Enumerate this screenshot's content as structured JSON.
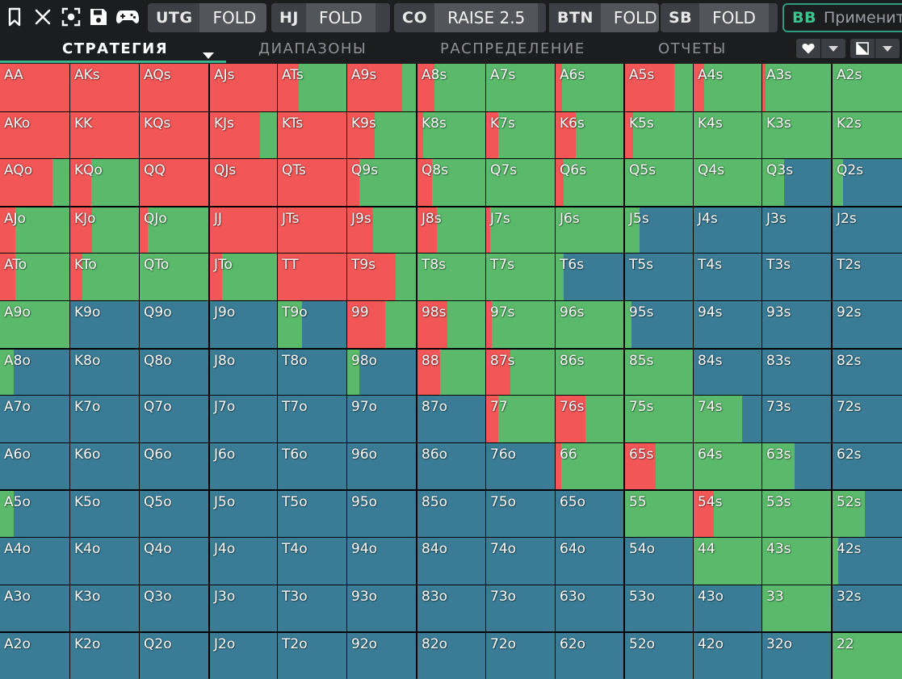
{
  "toolbar": {
    "icons": [
      "bookmark-icon",
      "close-icon",
      "focus-icon",
      "save-icon",
      "gamepad-icon"
    ],
    "positions": [
      {
        "name": "UTG",
        "action": "FOLD"
      },
      {
        "name": "HJ",
        "action": "FOLD"
      },
      {
        "name": "CO",
        "action": "RAISE 2.5"
      },
      {
        "name": "BTN",
        "action": "FOLD"
      },
      {
        "name": "SB",
        "action": "FOLD"
      }
    ],
    "bb": {
      "name": "BB",
      "apply_label": "Применит"
    }
  },
  "tabs": [
    {
      "label": "СТРАТЕГИЯ",
      "active": true
    },
    {
      "label": "ДИАПАЗОНЫ",
      "active": false
    },
    {
      "label": "РАСПРЕДЕЛЕНИЕ",
      "active": false
    },
    {
      "label": "ОТЧЕТЫ",
      "active": false
    }
  ],
  "view_tools": [
    {
      "icon": "heart-icon"
    },
    {
      "icon": "contrast-icon"
    }
  ],
  "colors": {
    "raise": "#f35656",
    "call": "#5ab96a",
    "fold": "#3a7c96"
  },
  "matrix": {
    "hands": [
      [
        "AA",
        "AKs",
        "AQs",
        "AJs",
        "ATs",
        "A9s",
        "A8s",
        "A7s",
        "A6s",
        "A5s",
        "A4s",
        "A3s",
        "A2s"
      ],
      [
        "AKo",
        "KK",
        "KQs",
        "KJs",
        "KTs",
        "K9s",
        "K8s",
        "K7s",
        "K6s",
        "K5s",
        "K4s",
        "K3s",
        "K2s"
      ],
      [
        "AQo",
        "KQo",
        "QQ",
        "QJs",
        "QTs",
        "Q9s",
        "Q8s",
        "Q7s",
        "Q6s",
        "Q5s",
        "Q4s",
        "Q3s",
        "Q2s"
      ],
      [
        "AJo",
        "KJo",
        "QJo",
        "JJ",
        "JTs",
        "J9s",
        "J8s",
        "J7s",
        "J6s",
        "J5s",
        "J4s",
        "J3s",
        "J2s"
      ],
      [
        "ATo",
        "KTo",
        "QTo",
        "JTo",
        "TT",
        "T9s",
        "T8s",
        "T7s",
        "T6s",
        "T5s",
        "T4s",
        "T3s",
        "T2s"
      ],
      [
        "A9o",
        "K9o",
        "Q9o",
        "J9o",
        "T9o",
        "99",
        "98s",
        "97s",
        "96s",
        "95s",
        "94s",
        "93s",
        "92s"
      ],
      [
        "A8o",
        "K8o",
        "Q8o",
        "J8o",
        "T8o",
        "98o",
        "88",
        "87s",
        "86s",
        "85s",
        "84s",
        "83s",
        "82s"
      ],
      [
        "A7o",
        "K7o",
        "Q7o",
        "J7o",
        "T7o",
        "97o",
        "87o",
        "77",
        "76s",
        "75s",
        "74s",
        "73s",
        "72s"
      ],
      [
        "A6o",
        "K6o",
        "Q6o",
        "J6o",
        "T6o",
        "96o",
        "86o",
        "76o",
        "66",
        "65s",
        "64s",
        "63s",
        "62s"
      ],
      [
        "A5o",
        "K5o",
        "Q5o",
        "J5o",
        "T5o",
        "95o",
        "85o",
        "75o",
        "65o",
        "55",
        "54s",
        "53s",
        "52s"
      ],
      [
        "A4o",
        "K4o",
        "Q4o",
        "J4o",
        "T4o",
        "94o",
        "84o",
        "74o",
        "64o",
        "54o",
        "44",
        "43s",
        "42s"
      ],
      [
        "A3o",
        "K3o",
        "Q3o",
        "J3o",
        "T3o",
        "93o",
        "83o",
        "73o",
        "63o",
        "53o",
        "43o",
        "33",
        "32s"
      ],
      [
        "A2o",
        "K2o",
        "Q2o",
        "J2o",
        "T2o",
        "92o",
        "82o",
        "72o",
        "62o",
        "52o",
        "42o",
        "32o",
        "22"
      ]
    ],
    "freqs": [
      [
        [
          100,
          0,
          0
        ],
        [
          100,
          0,
          0
        ],
        [
          100,
          0,
          0
        ],
        [
          100,
          0,
          0
        ],
        [
          30,
          70,
          0
        ],
        [
          80,
          20,
          0
        ],
        [
          25,
          75,
          0
        ],
        [
          0,
          100,
          0
        ],
        [
          10,
          90,
          0
        ],
        [
          73,
          27,
          0
        ],
        [
          15,
          85,
          0
        ],
        [
          5,
          95,
          0
        ],
        [
          0,
          100,
          0
        ]
      ],
      [
        [
          100,
          0,
          0
        ],
        [
          100,
          0,
          0
        ],
        [
          100,
          0,
          0
        ],
        [
          75,
          25,
          0
        ],
        [
          100,
          0,
          0
        ],
        [
          40,
          60,
          0
        ],
        [
          8,
          92,
          0
        ],
        [
          18,
          82,
          0
        ],
        [
          30,
          70,
          0
        ],
        [
          12,
          88,
          0
        ],
        [
          0,
          100,
          0
        ],
        [
          0,
          100,
          0
        ],
        [
          0,
          100,
          0
        ]
      ],
      [
        [
          75,
          25,
          0
        ],
        [
          30,
          70,
          0
        ],
        [
          100,
          0,
          0
        ],
        [
          100,
          0,
          0
        ],
        [
          100,
          0,
          0
        ],
        [
          18,
          82,
          0
        ],
        [
          22,
          78,
          0
        ],
        [
          0,
          100,
          0
        ],
        [
          12,
          88,
          0
        ],
        [
          0,
          100,
          0
        ],
        [
          0,
          100,
          0
        ],
        [
          0,
          32,
          68
        ],
        [
          0,
          15,
          85
        ]
      ],
      [
        [
          22,
          78,
          0
        ],
        [
          32,
          68,
          0
        ],
        [
          12,
          88,
          0
        ],
        [
          100,
          0,
          0
        ],
        [
          100,
          0,
          0
        ],
        [
          38,
          62,
          0
        ],
        [
          28,
          72,
          0
        ],
        [
          6,
          94,
          0
        ],
        [
          0,
          100,
          0
        ],
        [
          0,
          22,
          78
        ],
        [
          0,
          0,
          100
        ],
        [
          0,
          0,
          100
        ],
        [
          0,
          0,
          100
        ]
      ],
      [
        [
          22,
          78,
          0
        ],
        [
          18,
          82,
          0
        ],
        [
          0,
          100,
          0
        ],
        [
          18,
          82,
          0
        ],
        [
          100,
          0,
          0
        ],
        [
          71,
          29,
          0
        ],
        [
          0,
          100,
          0
        ],
        [
          0,
          100,
          0
        ],
        [
          0,
          12,
          88
        ],
        [
          0,
          0,
          100
        ],
        [
          0,
          0,
          100
        ],
        [
          0,
          0,
          100
        ],
        [
          0,
          0,
          100
        ]
      ],
      [
        [
          0,
          100,
          0
        ],
        [
          0,
          0,
          100
        ],
        [
          0,
          0,
          100
        ],
        [
          0,
          0,
          100
        ],
        [
          0,
          35,
          65
        ],
        [
          55,
          45,
          0
        ],
        [
          44,
          56,
          0
        ],
        [
          8,
          92,
          0
        ],
        [
          0,
          100,
          0
        ],
        [
          0,
          10,
          90
        ],
        [
          0,
          0,
          100
        ],
        [
          0,
          0,
          100
        ],
        [
          0,
          0,
          100
        ]
      ],
      [
        [
          0,
          20,
          80
        ],
        [
          0,
          0,
          100
        ],
        [
          0,
          0,
          100
        ],
        [
          0,
          0,
          100
        ],
        [
          0,
          0,
          100
        ],
        [
          0,
          18,
          82
        ],
        [
          33,
          67,
          0
        ],
        [
          35,
          65,
          0
        ],
        [
          0,
          100,
          0
        ],
        [
          0,
          100,
          0
        ],
        [
          0,
          0,
          100
        ],
        [
          0,
          0,
          100
        ],
        [
          0,
          0,
          100
        ]
      ],
      [
        [
          0,
          0,
          100
        ],
        [
          0,
          0,
          100
        ],
        [
          0,
          0,
          100
        ],
        [
          0,
          0,
          100
        ],
        [
          0,
          0,
          100
        ],
        [
          0,
          0,
          100
        ],
        [
          0,
          0,
          100
        ],
        [
          18,
          82,
          0
        ],
        [
          44,
          56,
          0
        ],
        [
          0,
          100,
          0
        ],
        [
          0,
          72,
          28
        ],
        [
          0,
          0,
          100
        ],
        [
          0,
          0,
          100
        ]
      ],
      [
        [
          0,
          0,
          100
        ],
        [
          0,
          0,
          100
        ],
        [
          0,
          0,
          100
        ],
        [
          0,
          0,
          100
        ],
        [
          0,
          0,
          100
        ],
        [
          0,
          0,
          100
        ],
        [
          0,
          0,
          100
        ],
        [
          0,
          0,
          100
        ],
        [
          8,
          92,
          0
        ],
        [
          45,
          55,
          0
        ],
        [
          0,
          100,
          0
        ],
        [
          0,
          47,
          53
        ],
        [
          0,
          0,
          100
        ]
      ],
      [
        [
          0,
          20,
          80
        ],
        [
          0,
          0,
          100
        ],
        [
          0,
          0,
          100
        ],
        [
          0,
          0,
          100
        ],
        [
          0,
          0,
          100
        ],
        [
          0,
          0,
          100
        ],
        [
          0,
          0,
          100
        ],
        [
          0,
          0,
          100
        ],
        [
          0,
          0,
          100
        ],
        [
          0,
          100,
          0
        ],
        [
          30,
          70,
          0
        ],
        [
          0,
          100,
          0
        ],
        [
          0,
          47,
          53
        ]
      ],
      [
        [
          0,
          0,
          100
        ],
        [
          0,
          0,
          100
        ],
        [
          0,
          0,
          100
        ],
        [
          0,
          0,
          100
        ],
        [
          0,
          0,
          100
        ],
        [
          0,
          0,
          100
        ],
        [
          0,
          0,
          100
        ],
        [
          0,
          0,
          100
        ],
        [
          0,
          0,
          100
        ],
        [
          0,
          0,
          100
        ],
        [
          0,
          100,
          0
        ],
        [
          0,
          100,
          0
        ],
        [
          0,
          8,
          92
        ]
      ],
      [
        [
          0,
          0,
          100
        ],
        [
          0,
          0,
          100
        ],
        [
          0,
          0,
          100
        ],
        [
          0,
          0,
          100
        ],
        [
          0,
          0,
          100
        ],
        [
          0,
          0,
          100
        ],
        [
          0,
          0,
          100
        ],
        [
          0,
          0,
          100
        ],
        [
          0,
          0,
          100
        ],
        [
          0,
          0,
          100
        ],
        [
          0,
          0,
          100
        ],
        [
          0,
          100,
          0
        ],
        [
          0,
          0,
          100
        ]
      ],
      [
        [
          0,
          0,
          100
        ],
        [
          0,
          0,
          100
        ],
        [
          0,
          0,
          100
        ],
        [
          0,
          0,
          100
        ],
        [
          0,
          0,
          100
        ],
        [
          0,
          0,
          100
        ],
        [
          0,
          0,
          100
        ],
        [
          0,
          0,
          100
        ],
        [
          0,
          0,
          100
        ],
        [
          0,
          0,
          100
        ],
        [
          0,
          0,
          100
        ],
        [
          0,
          0,
          100
        ],
        [
          0,
          100,
          0
        ]
      ]
    ]
  }
}
